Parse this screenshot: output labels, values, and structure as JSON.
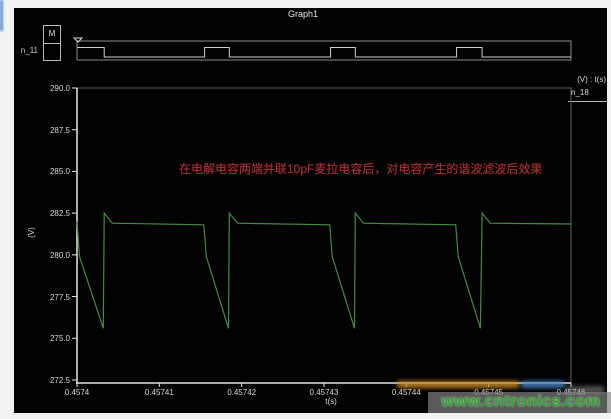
{
  "window": {
    "title": "Graph1"
  },
  "top_plot": {
    "cursor_box_label": "M"
  },
  "legend": {
    "header": "(V) : t(s)"
  },
  "annotation": {
    "text": "在电解电容两端并联10pF麦拉电容后，对电容产生的谐波滤波后效果"
  },
  "watermark": {
    "url": "www.cntronics.com"
  },
  "colors": {
    "panel_bg": "#020202",
    "trace_green": "#458a45",
    "digital_trace": "#cfcfcf",
    "annotation_red": "#a93232",
    "watermark_green": "#2fa52f",
    "frame_gray": "#8a8a8a",
    "axis_white": "#e6e6e6"
  },
  "chart_data": [
    {
      "type": "line",
      "name": "n_11",
      "subplot": "digital-pulse-row",
      "x_unit": "microseconds after 0.4574 s",
      "ylim": [
        0,
        1
      ],
      "points": [
        [
          0,
          1
        ],
        [
          3.3,
          1
        ],
        [
          3.3,
          0
        ],
        [
          15.5,
          0
        ],
        [
          15.5,
          1
        ],
        [
          18.5,
          1
        ],
        [
          18.5,
          0
        ],
        [
          30.8,
          0
        ],
        [
          30.8,
          1
        ],
        [
          33.8,
          1
        ],
        [
          33.8,
          0
        ],
        [
          46.1,
          0
        ],
        [
          46.1,
          1
        ],
        [
          49.2,
          1
        ],
        [
          49.2,
          0
        ],
        [
          60,
          0
        ]
      ]
    },
    {
      "type": "line",
      "name": "n_18",
      "title": "Graph1",
      "xlabel": "t(s)",
      "ylabel": "(V)",
      "xlim": [
        0.4574,
        0.45746
      ],
      "ylim": [
        272.5,
        290.0
      ],
      "xticks": [
        "0.4574",
        "0.45741",
        "0.45742",
        "0.45743",
        "0.45744",
        "0.45745",
        "0.45746"
      ],
      "yticks": [
        "290.0",
        "287.5",
        "285.0",
        "282.5",
        "280.0",
        "277.5",
        "275.0",
        "272.5"
      ],
      "grid": false,
      "legend_position": "top-right",
      "x_unit": "microseconds after 0.4574 s",
      "points": [
        [
          0,
          282.0
        ],
        [
          0.3,
          279.9
        ],
        [
          3.2,
          275.6
        ],
        [
          3.3,
          282.5
        ],
        [
          4.3,
          281.9
        ],
        [
          15.4,
          281.8
        ],
        [
          15.7,
          279.9
        ],
        [
          18.4,
          275.6
        ],
        [
          18.5,
          282.5
        ],
        [
          19.5,
          281.9
        ],
        [
          30.7,
          281.8
        ],
        [
          31.0,
          279.9
        ],
        [
          33.7,
          275.6
        ],
        [
          33.8,
          282.5
        ],
        [
          34.8,
          281.9
        ],
        [
          46.0,
          281.8
        ],
        [
          46.3,
          279.9
        ],
        [
          49.0,
          275.6
        ],
        [
          49.2,
          282.5
        ],
        [
          50.2,
          281.9
        ],
        [
          60,
          281.85
        ]
      ]
    }
  ]
}
